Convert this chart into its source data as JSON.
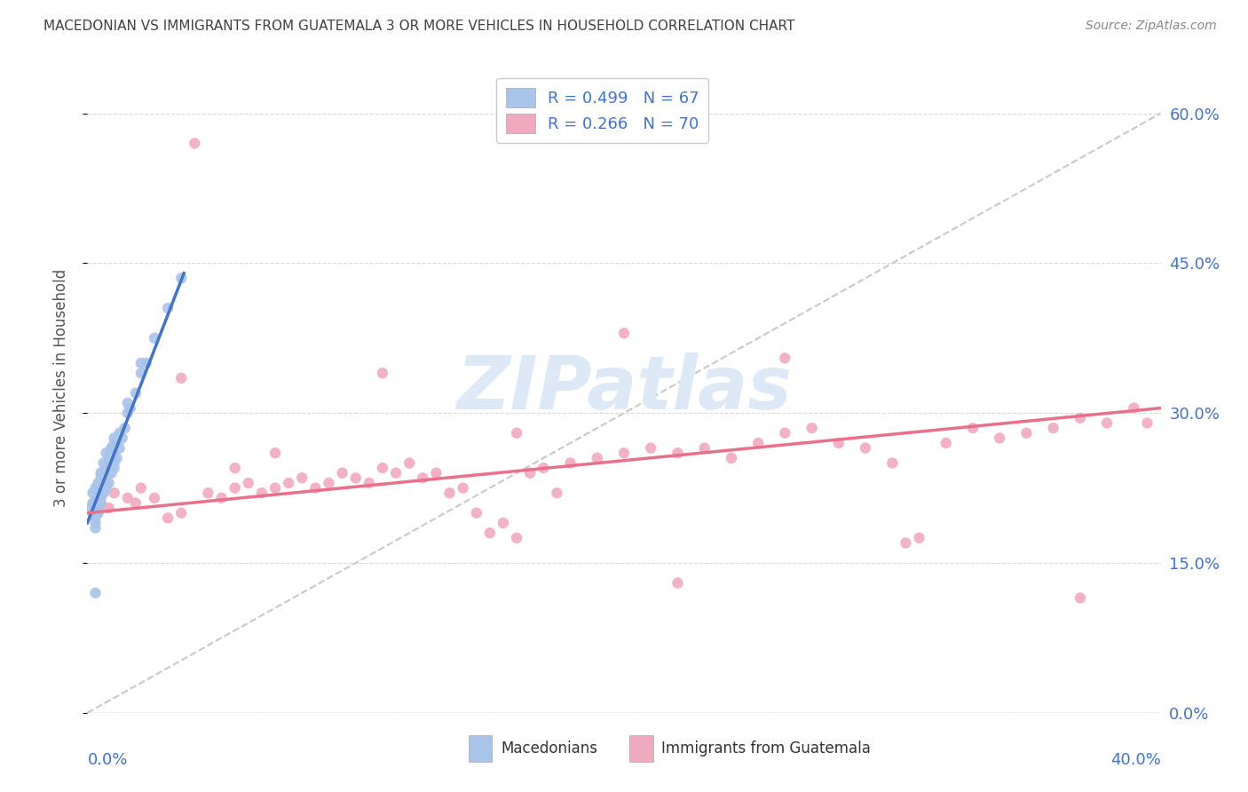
{
  "title": "MACEDONIAN VS IMMIGRANTS FROM GUATEMALA 3 OR MORE VEHICLES IN HOUSEHOLD CORRELATION CHART",
  "source": "Source: ZipAtlas.com",
  "ylabel": "3 or more Vehicles in Household",
  "legend_macedonians": "Macedonians",
  "legend_guatemala": "Immigrants from Guatemala",
  "legend_R_mac": "R = 0.499",
  "legend_N_mac": "N = 67",
  "legend_R_guat": "R = 0.266",
  "legend_N_guat": "N = 70",
  "macedonian_color": "#a8c4e8",
  "guatemala_color": "#f0aabf",
  "macedonian_line_color": "#4472c4",
  "guatemala_line_color": "#e8708a",
  "diagonal_color": "#c8c8c8",
  "title_color": "#404040",
  "tick_label_color": "#4472c4",
  "source_color": "#888888",
  "xlim": [
    0.0,
    40.0
  ],
  "ylim": [
    0.0,
    65.0
  ],
  "ytick_vals": [
    0.0,
    15.0,
    30.0,
    45.0,
    60.0
  ],
  "xtick_vals": [
    0.0,
    5.0,
    10.0,
    15.0,
    20.0,
    25.0,
    30.0,
    35.0,
    40.0
  ],
  "mac_x": [
    0.1,
    0.2,
    0.2,
    0.3,
    0.3,
    0.3,
    0.4,
    0.4,
    0.4,
    0.5,
    0.5,
    0.5,
    0.5,
    0.6,
    0.6,
    0.6,
    0.7,
    0.7,
    0.7,
    0.8,
    0.8,
    0.9,
    0.9,
    1.0,
    1.0,
    1.0,
    1.1,
    1.1,
    1.2,
    1.2,
    1.3,
    1.4,
    1.5,
    1.6,
    1.8,
    2.0,
    2.2,
    2.5,
    3.0,
    3.5,
    0.2,
    0.3,
    0.4,
    0.5,
    0.6,
    0.7,
    0.8,
    0.9,
    1.0,
    1.1,
    0.3,
    0.4,
    0.5,
    0.6,
    0.7,
    0.8,
    0.3,
    0.5,
    0.7,
    0.9,
    0.4,
    0.6,
    0.8,
    1.0,
    1.5,
    2.0,
    0.3
  ],
  "mac_y": [
    20.5,
    21.0,
    22.0,
    19.5,
    20.5,
    22.5,
    20.0,
    21.5,
    23.0,
    21.0,
    22.0,
    23.5,
    24.0,
    22.0,
    23.0,
    25.0,
    22.5,
    24.0,
    26.0,
    23.0,
    25.5,
    24.0,
    26.5,
    24.5,
    26.0,
    27.5,
    25.5,
    27.0,
    26.5,
    28.0,
    27.5,
    28.5,
    30.0,
    30.5,
    32.0,
    34.0,
    35.0,
    37.5,
    40.5,
    43.5,
    20.0,
    21.0,
    20.5,
    23.0,
    22.0,
    24.5,
    24.0,
    26.0,
    25.0,
    27.0,
    19.0,
    20.0,
    21.5,
    23.5,
    23.0,
    25.0,
    18.5,
    22.5,
    24.5,
    26.5,
    21.5,
    23.0,
    25.5,
    27.0,
    31.0,
    35.0,
    12.0
  ],
  "guat_x": [
    0.5,
    0.8,
    1.0,
    1.5,
    1.8,
    2.0,
    2.5,
    3.0,
    3.5,
    4.0,
    4.5,
    5.0,
    5.5,
    6.0,
    6.5,
    7.0,
    7.5,
    8.0,
    8.5,
    9.0,
    9.5,
    10.0,
    10.5,
    11.0,
    11.5,
    12.0,
    12.5,
    13.0,
    13.5,
    14.0,
    14.5,
    15.0,
    15.5,
    16.0,
    16.5,
    17.0,
    17.5,
    18.0,
    19.0,
    20.0,
    21.0,
    22.0,
    23.0,
    24.0,
    25.0,
    26.0,
    27.0,
    28.0,
    29.0,
    30.0,
    31.0,
    32.0,
    33.0,
    34.0,
    35.0,
    36.0,
    37.0,
    38.0,
    39.0,
    39.5,
    3.5,
    7.0,
    11.0,
    16.0,
    20.0,
    26.0,
    30.5,
    37.0,
    5.5,
    22.0
  ],
  "guat_y": [
    21.0,
    20.5,
    22.0,
    21.5,
    21.0,
    22.5,
    21.5,
    19.5,
    20.0,
    57.0,
    22.0,
    21.5,
    22.5,
    23.0,
    22.0,
    22.5,
    23.0,
    23.5,
    22.5,
    23.0,
    24.0,
    23.5,
    23.0,
    24.5,
    24.0,
    25.0,
    23.5,
    24.0,
    22.0,
    22.5,
    20.0,
    18.0,
    19.0,
    17.5,
    24.0,
    24.5,
    22.0,
    25.0,
    25.5,
    26.0,
    26.5,
    26.0,
    26.5,
    25.5,
    27.0,
    28.0,
    28.5,
    27.0,
    26.5,
    25.0,
    17.5,
    27.0,
    28.5,
    27.5,
    28.0,
    28.5,
    29.5,
    29.0,
    30.5,
    29.0,
    33.5,
    26.0,
    34.0,
    28.0,
    38.0,
    35.5,
    17.0,
    11.5,
    24.5,
    13.0
  ]
}
